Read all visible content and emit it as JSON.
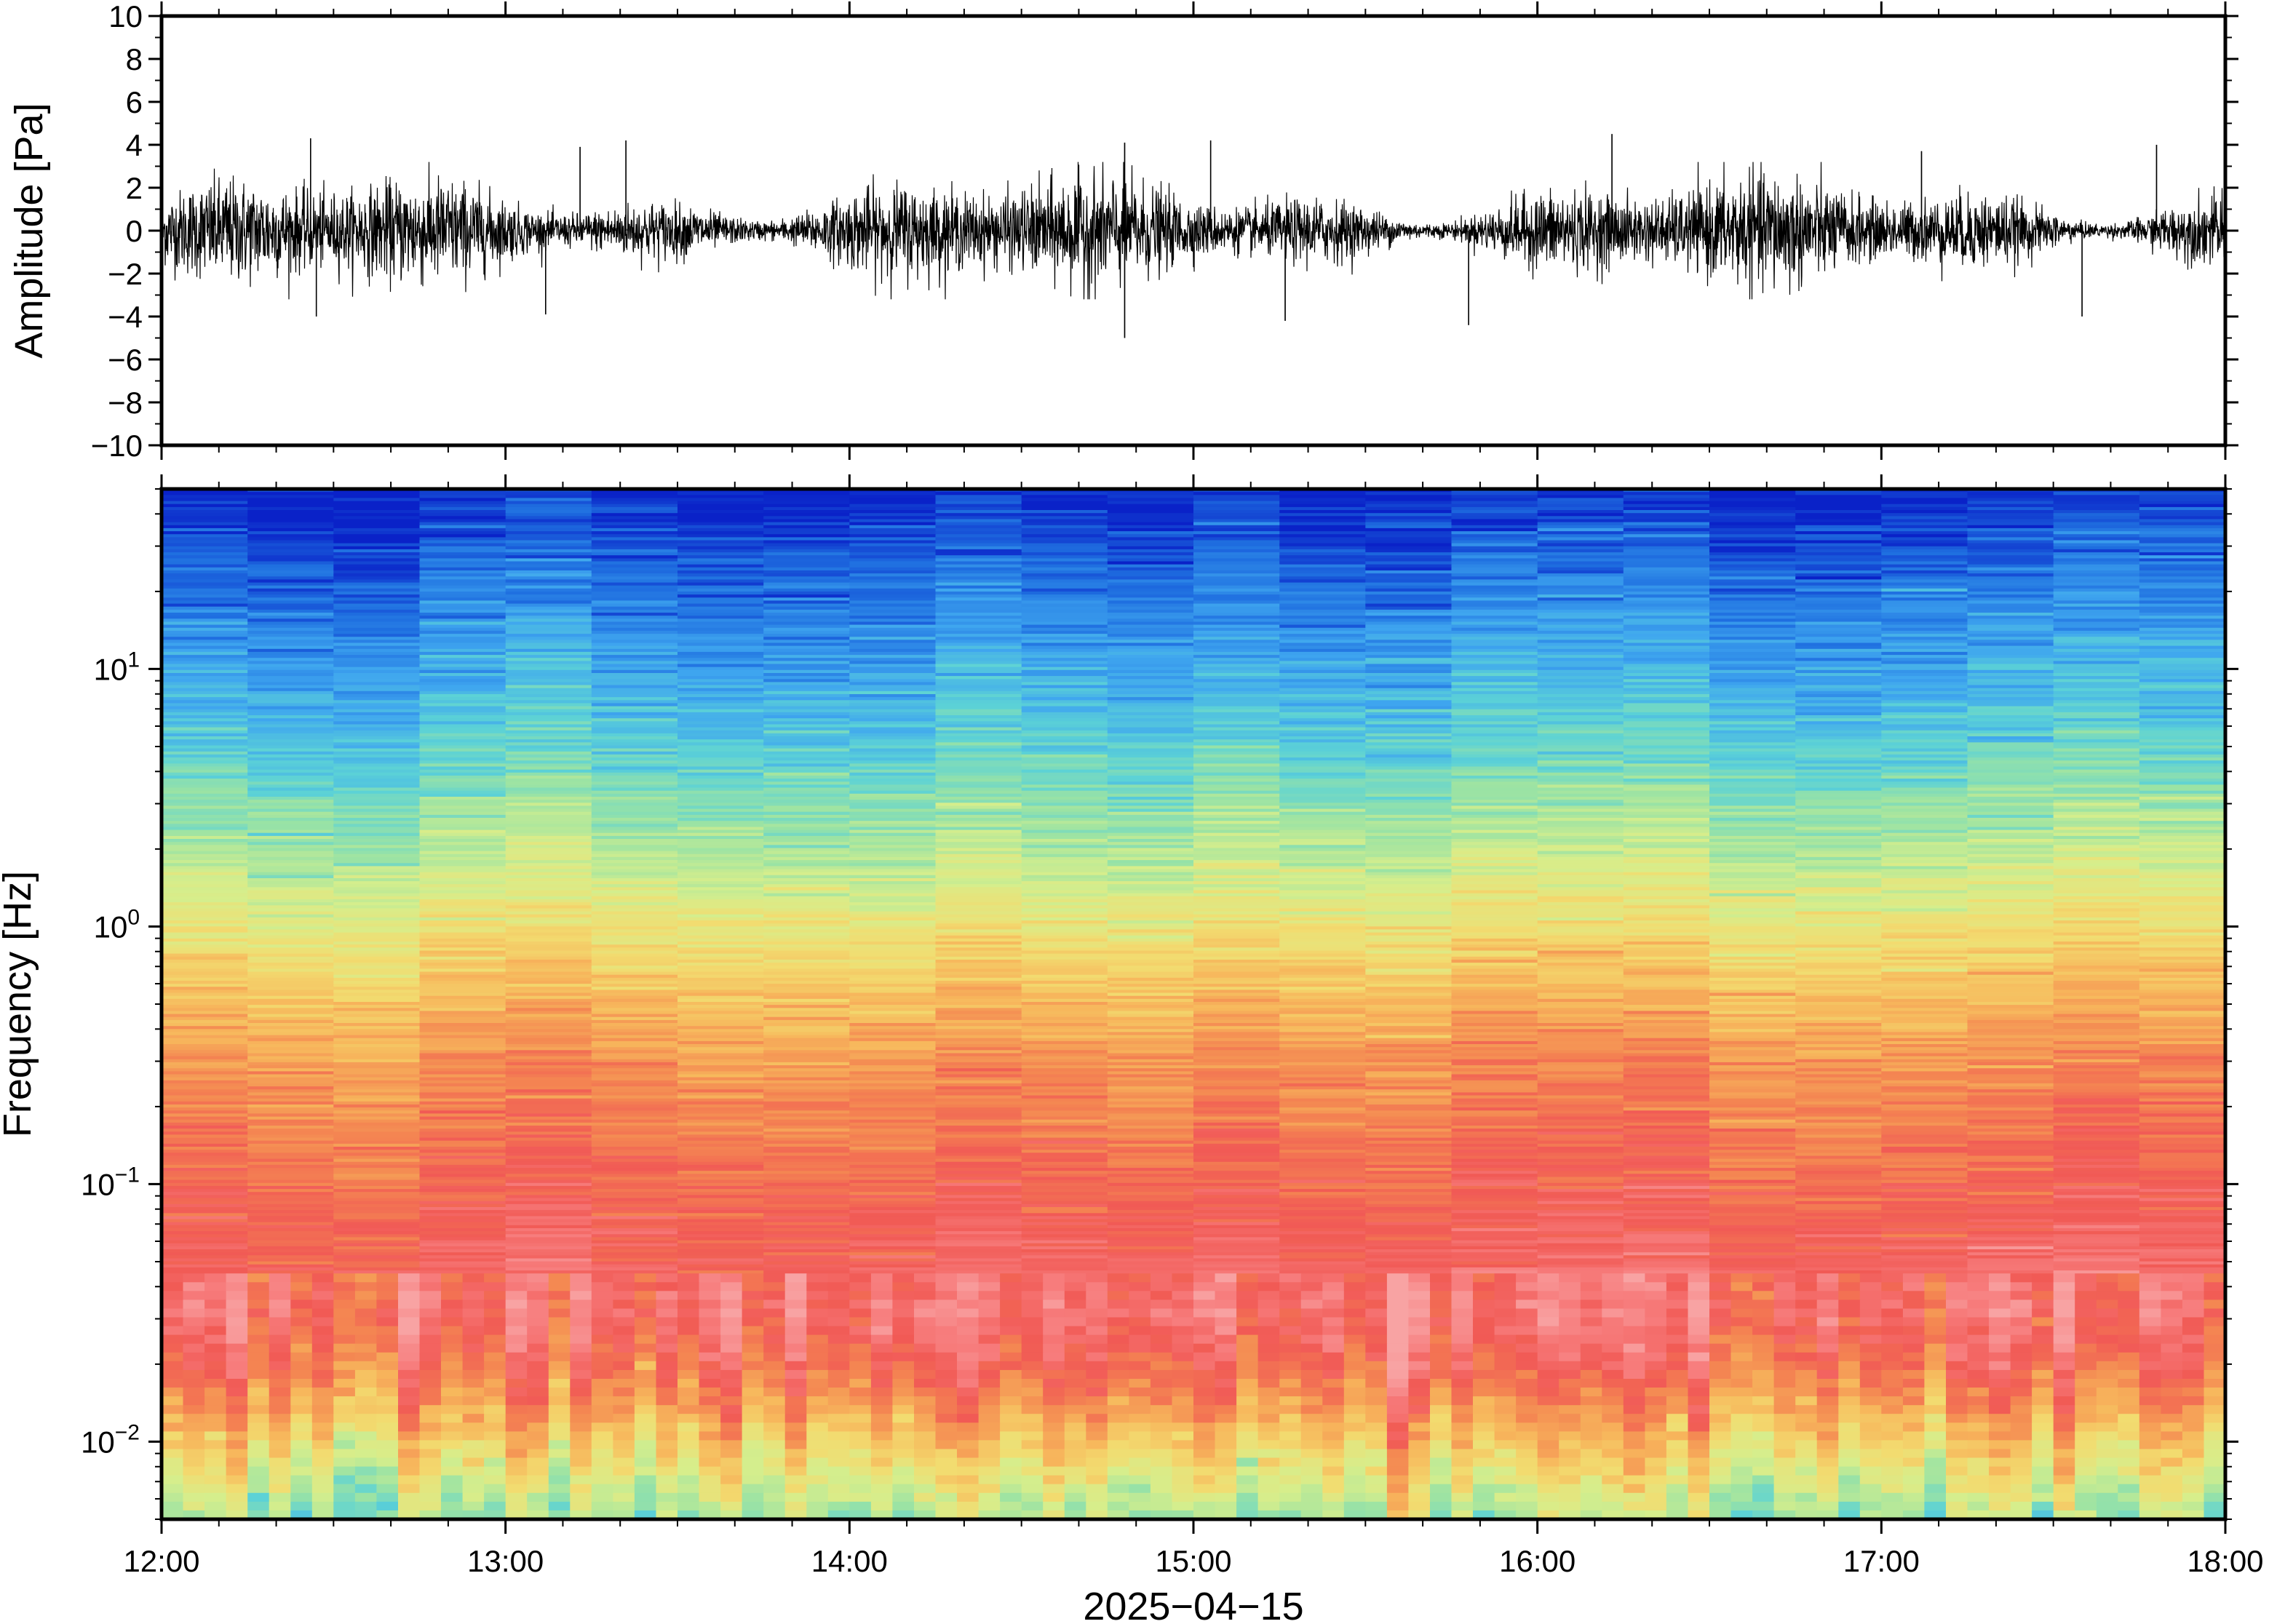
{
  "chart_data": [
    {
      "type": "line",
      "panel": "waveform",
      "ylabel": "Amplitude [Pa]",
      "ylim": [
        -10,
        10
      ],
      "yticks": [
        10,
        8,
        6,
        4,
        2,
        0,
        -2,
        -4,
        -6,
        -8,
        -10
      ],
      "ytick_labels": [
        "10",
        "8",
        "6",
        "4",
        "2",
        "0",
        "−2",
        "−4",
        "−6",
        "−8",
        "−10"
      ],
      "xlim": [
        "2025-04-15 12:00",
        "2025-04-15 18:00"
      ],
      "line_color": "#000000",
      "typical_envelope": [
        -2,
        2
      ],
      "peaks": [
        {
          "time": "12:26",
          "value": 4.3
        },
        {
          "time": "12:27",
          "value": -4.0
        },
        {
          "time": "13:07",
          "value": -3.9
        },
        {
          "time": "13:13",
          "value": 3.9
        },
        {
          "time": "13:21",
          "value": 4.2
        },
        {
          "time": "14:48",
          "value": 4.1
        },
        {
          "time": "14:48",
          "value": -5.0
        },
        {
          "time": "15:03",
          "value": 4.2
        },
        {
          "time": "15:16",
          "value": -4.2
        },
        {
          "time": "15:48",
          "value": -4.4
        },
        {
          "time": "16:13",
          "value": 4.5
        },
        {
          "time": "17:07",
          "value": 3.7
        },
        {
          "time": "17:35",
          "value": -4.0
        },
        {
          "time": "17:48",
          "value": 4.0
        }
      ]
    },
    {
      "type": "heatmap",
      "panel": "spectrogram",
      "ylabel": "Frequency [Hz]",
      "yscale": "log",
      "ylim": [
        0.005,
        50
      ],
      "yticks": [
        {
          "value": 10,
          "base": "10",
          "exp": "1"
        },
        {
          "value": 1,
          "base": "10",
          "exp": "0"
        },
        {
          "value": 0.1,
          "base": "10",
          "exp": "−1"
        },
        {
          "value": 0.01,
          "base": "10",
          "exp": "−2"
        }
      ],
      "xlabel": "2025−04−15",
      "xticks": [
        "12:00",
        "13:00",
        "14:00",
        "15:00",
        "16:00",
        "17:00",
        "18:00"
      ],
      "xlim": [
        "12:00",
        "18:00"
      ],
      "colormap_description": "blue at highest frequencies, cyan/green near 10 Hz, yellow/orange around 1 Hz, red/pink 0.03-0.3 Hz, orange/yellow/green below 0.03 Hz",
      "colormap_stops": [
        "#0a22c8",
        "#1f6fe0",
        "#3fa6ef",
        "#5cd2d6",
        "#9be3a4",
        "#d6ee8c",
        "#f2dc70",
        "#f7b75c",
        "#f48752",
        "#f15a55",
        "#f77d7d",
        "#f8a3a3"
      ],
      "profile": [
        {
          "freq": 50,
          "color": "#0a22c8"
        },
        {
          "freq": 30,
          "color": "#2a6fe0"
        },
        {
          "freq": 15,
          "color": "#5cc4e6"
        },
        {
          "freq": 8,
          "color": "#7ee0c2"
        },
        {
          "freq": 4,
          "color": "#d5ec8e"
        },
        {
          "freq": 1.5,
          "color": "#f5d478"
        },
        {
          "freq": 0.6,
          "color": "#f7b866"
        },
        {
          "freq": 0.3,
          "color": "#f36a5a"
        },
        {
          "freq": 0.1,
          "color": "#f36666"
        },
        {
          "freq": 0.04,
          "color": "#f1605a"
        },
        {
          "freq": 0.025,
          "color": "#f7a35e"
        },
        {
          "freq": 0.012,
          "color": "#e9e98a"
        },
        {
          "freq": 0.005,
          "color": "#a8f0b8"
        }
      ]
    }
  ]
}
